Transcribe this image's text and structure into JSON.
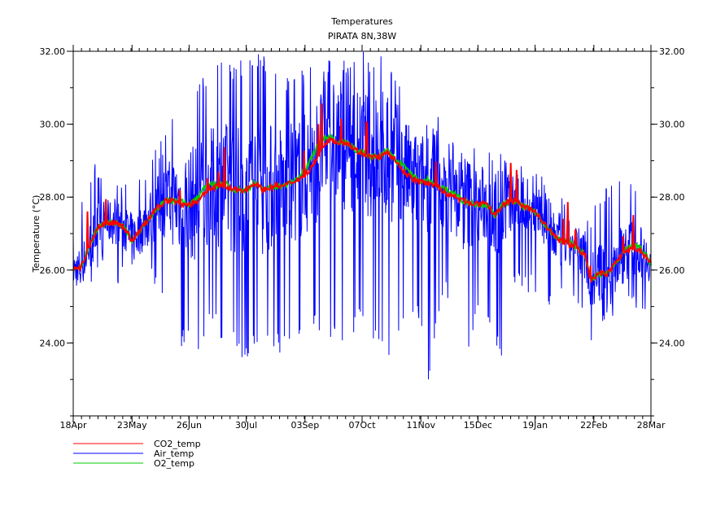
{
  "chart_data": {
    "type": "line",
    "title": "Temperatures",
    "subtitle": "PIRATA 8N,38W",
    "xlabel": "",
    "ylabel": "Temperature (°C)",
    "ylim": [
      22,
      32
    ],
    "xlim_days": [
      0,
      344
    ],
    "y_ticks": [
      24,
      26,
      28,
      30,
      32
    ],
    "y_tick_labels": [
      "24.00",
      "26.00",
      "28.00",
      "30.00",
      "32.00"
    ],
    "x_ticks_days": [
      0,
      35,
      69,
      103,
      138,
      172,
      207,
      241,
      275,
      310,
      344
    ],
    "x_tick_labels": [
      "18Apr",
      "23May",
      "26Jun",
      "30Jul",
      "03Sep",
      "07Oct",
      "11Nov",
      "15Dec",
      "19Jan",
      "22Feb",
      "28Mar"
    ],
    "legend_placement": "bottom-left",
    "grid": false,
    "x_days": [
      0,
      5,
      10,
      15,
      20,
      25,
      30,
      35,
      40,
      45,
      50,
      55,
      60,
      65,
      69,
      75,
      80,
      85,
      90,
      95,
      103,
      108,
      113,
      120,
      125,
      130,
      138,
      143,
      148,
      153,
      158,
      163,
      168,
      172,
      177,
      182,
      187,
      192,
      197,
      202,
      207,
      212,
      217,
      222,
      227,
      232,
      241,
      246,
      251,
      256,
      261,
      266,
      275,
      280,
      285,
      290,
      295,
      300,
      305,
      308,
      313,
      318,
      323,
      328,
      333,
      338,
      344
    ],
    "series": [
      {
        "name": "CO2_temp",
        "color": "#ff0000",
        "values": [
          26.0,
          26.1,
          26.7,
          27.2,
          27.3,
          27.3,
          27.2,
          26.8,
          27.1,
          27.4,
          27.7,
          27.9,
          27.9,
          27.8,
          27.8,
          27.9,
          28.2,
          28.3,
          28.3,
          28.2,
          28.2,
          28.4,
          28.2,
          28.3,
          28.3,
          28.4,
          28.6,
          28.9,
          29.3,
          29.6,
          29.5,
          29.5,
          29.3,
          29.2,
          29.1,
          29.1,
          29.2,
          29.0,
          28.7,
          28.5,
          28.4,
          28.4,
          28.3,
          28.1,
          28.0,
          27.9,
          27.8,
          27.8,
          27.5,
          27.8,
          27.9,
          27.8,
          27.6,
          27.3,
          27.0,
          26.8,
          26.7,
          26.6,
          26.4,
          25.7,
          25.9,
          25.9,
          26.2,
          26.5,
          26.6,
          26.5,
          26.2
        ]
      },
      {
        "name": "Air_temp",
        "color": "#0000ff",
        "min": [
          25.3,
          25.5,
          25.6,
          25.8,
          25.9,
          25.7,
          25.5,
          24.8,
          25.6,
          25.5,
          25.4,
          25.3,
          24.6,
          23.8,
          24.2,
          23.6,
          24.4,
          24.5,
          23.8,
          24.1,
          23.3,
          24.0,
          23.9,
          23.8,
          23.6,
          24.1,
          23.8,
          24.3,
          24.0,
          23.8,
          24.0,
          23.7,
          24.2,
          24.5,
          24.3,
          23.6,
          23.4,
          24.0,
          24.6,
          24.4,
          24.6,
          22.8,
          24.6,
          25.1,
          24.8,
          23.3,
          24.5,
          24.8,
          24.0,
          23.4,
          25.4,
          25.5,
          25.3,
          24.9,
          24.8,
          24.9,
          25.0,
          24.8,
          24.5,
          23.7,
          24.4,
          24.5,
          24.8,
          25.0,
          25.0,
          24.9,
          24.9
        ],
        "max": [
          27.5,
          28.0,
          28.6,
          29.1,
          28.7,
          28.4,
          28.4,
          28.2,
          28.6,
          29.0,
          29.4,
          29.8,
          30.4,
          30.8,
          31.0,
          31.3,
          31.6,
          32.0,
          32.0,
          31.7,
          32.0,
          31.9,
          32.0,
          31.8,
          31.3,
          31.5,
          31.6,
          32.0,
          32.0,
          31.8,
          32.0,
          32.0,
          31.8,
          32.0,
          31.9,
          31.9,
          32.0,
          31.6,
          31.0,
          30.8,
          30.4,
          30.2,
          30.3,
          30.0,
          29.5,
          29.6,
          29.4,
          29.5,
          29.3,
          29.2,
          29.2,
          29.0,
          28.9,
          28.5,
          28.4,
          28.3,
          28.0,
          27.6,
          27.4,
          27.7,
          27.9,
          28.5,
          28.8,
          28.7,
          28.3,
          28.0,
          27.3
        ]
      },
      {
        "name": "O2_temp",
        "color": "#00cc00",
        "values": [
          26.0,
          26.1,
          26.7,
          27.2,
          27.3,
          27.3,
          27.2,
          26.8,
          27.1,
          27.4,
          27.7,
          27.9,
          27.9,
          27.9,
          27.8,
          28.0,
          28.4,
          28.3,
          28.4,
          28.2,
          28.2,
          28.4,
          28.2,
          28.3,
          28.3,
          28.4,
          28.7,
          29.2,
          29.6,
          29.7,
          29.5,
          29.5,
          29.3,
          29.2,
          29.1,
          29.1,
          29.3,
          29.0,
          28.9,
          28.6,
          28.4,
          28.5,
          28.3,
          28.2,
          28.1,
          27.9,
          27.8,
          27.8,
          27.5,
          27.8,
          27.9,
          27.8,
          27.6,
          27.3,
          27.0,
          26.8,
          26.8,
          26.6,
          26.4,
          25.7,
          25.9,
          25.9,
          26.2,
          26.5,
          26.7,
          26.6,
          26.2
        ]
      }
    ]
  }
}
